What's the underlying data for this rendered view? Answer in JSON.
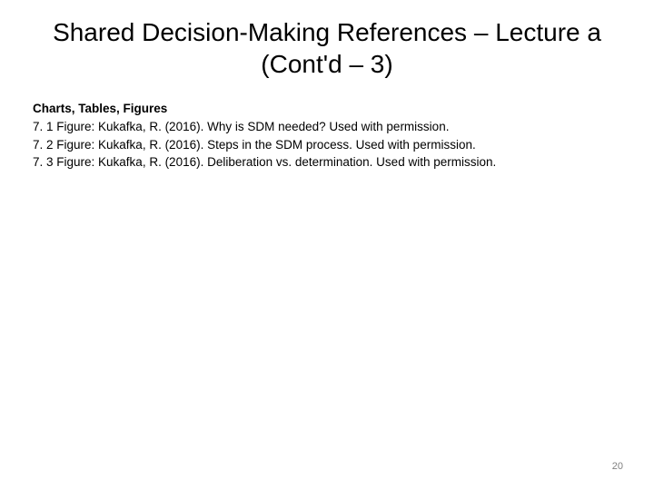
{
  "slide": {
    "title": "Shared Decision-Making References – Lecture a (Cont'd – 3)",
    "section_header": "Charts, Tables, Figures",
    "references": [
      "7. 1 Figure: Kukafka, R. (2016). Why is SDM needed?  Used with permission.",
      "7. 2 Figure: Kukafka, R. (2016). Steps in the SDM process.  Used with permission.",
      "7. 3 Figure: Kukafka, R. (2016). Deliberation vs. determination.  Used with permission."
    ],
    "page_number": "20"
  },
  "style": {
    "background_color": "#ffffff",
    "title_fontsize": 28,
    "title_color": "#000000",
    "body_fontsize": 13.5,
    "body_color": "#000000",
    "page_number_fontsize": 11,
    "page_number_color": "#808080"
  }
}
